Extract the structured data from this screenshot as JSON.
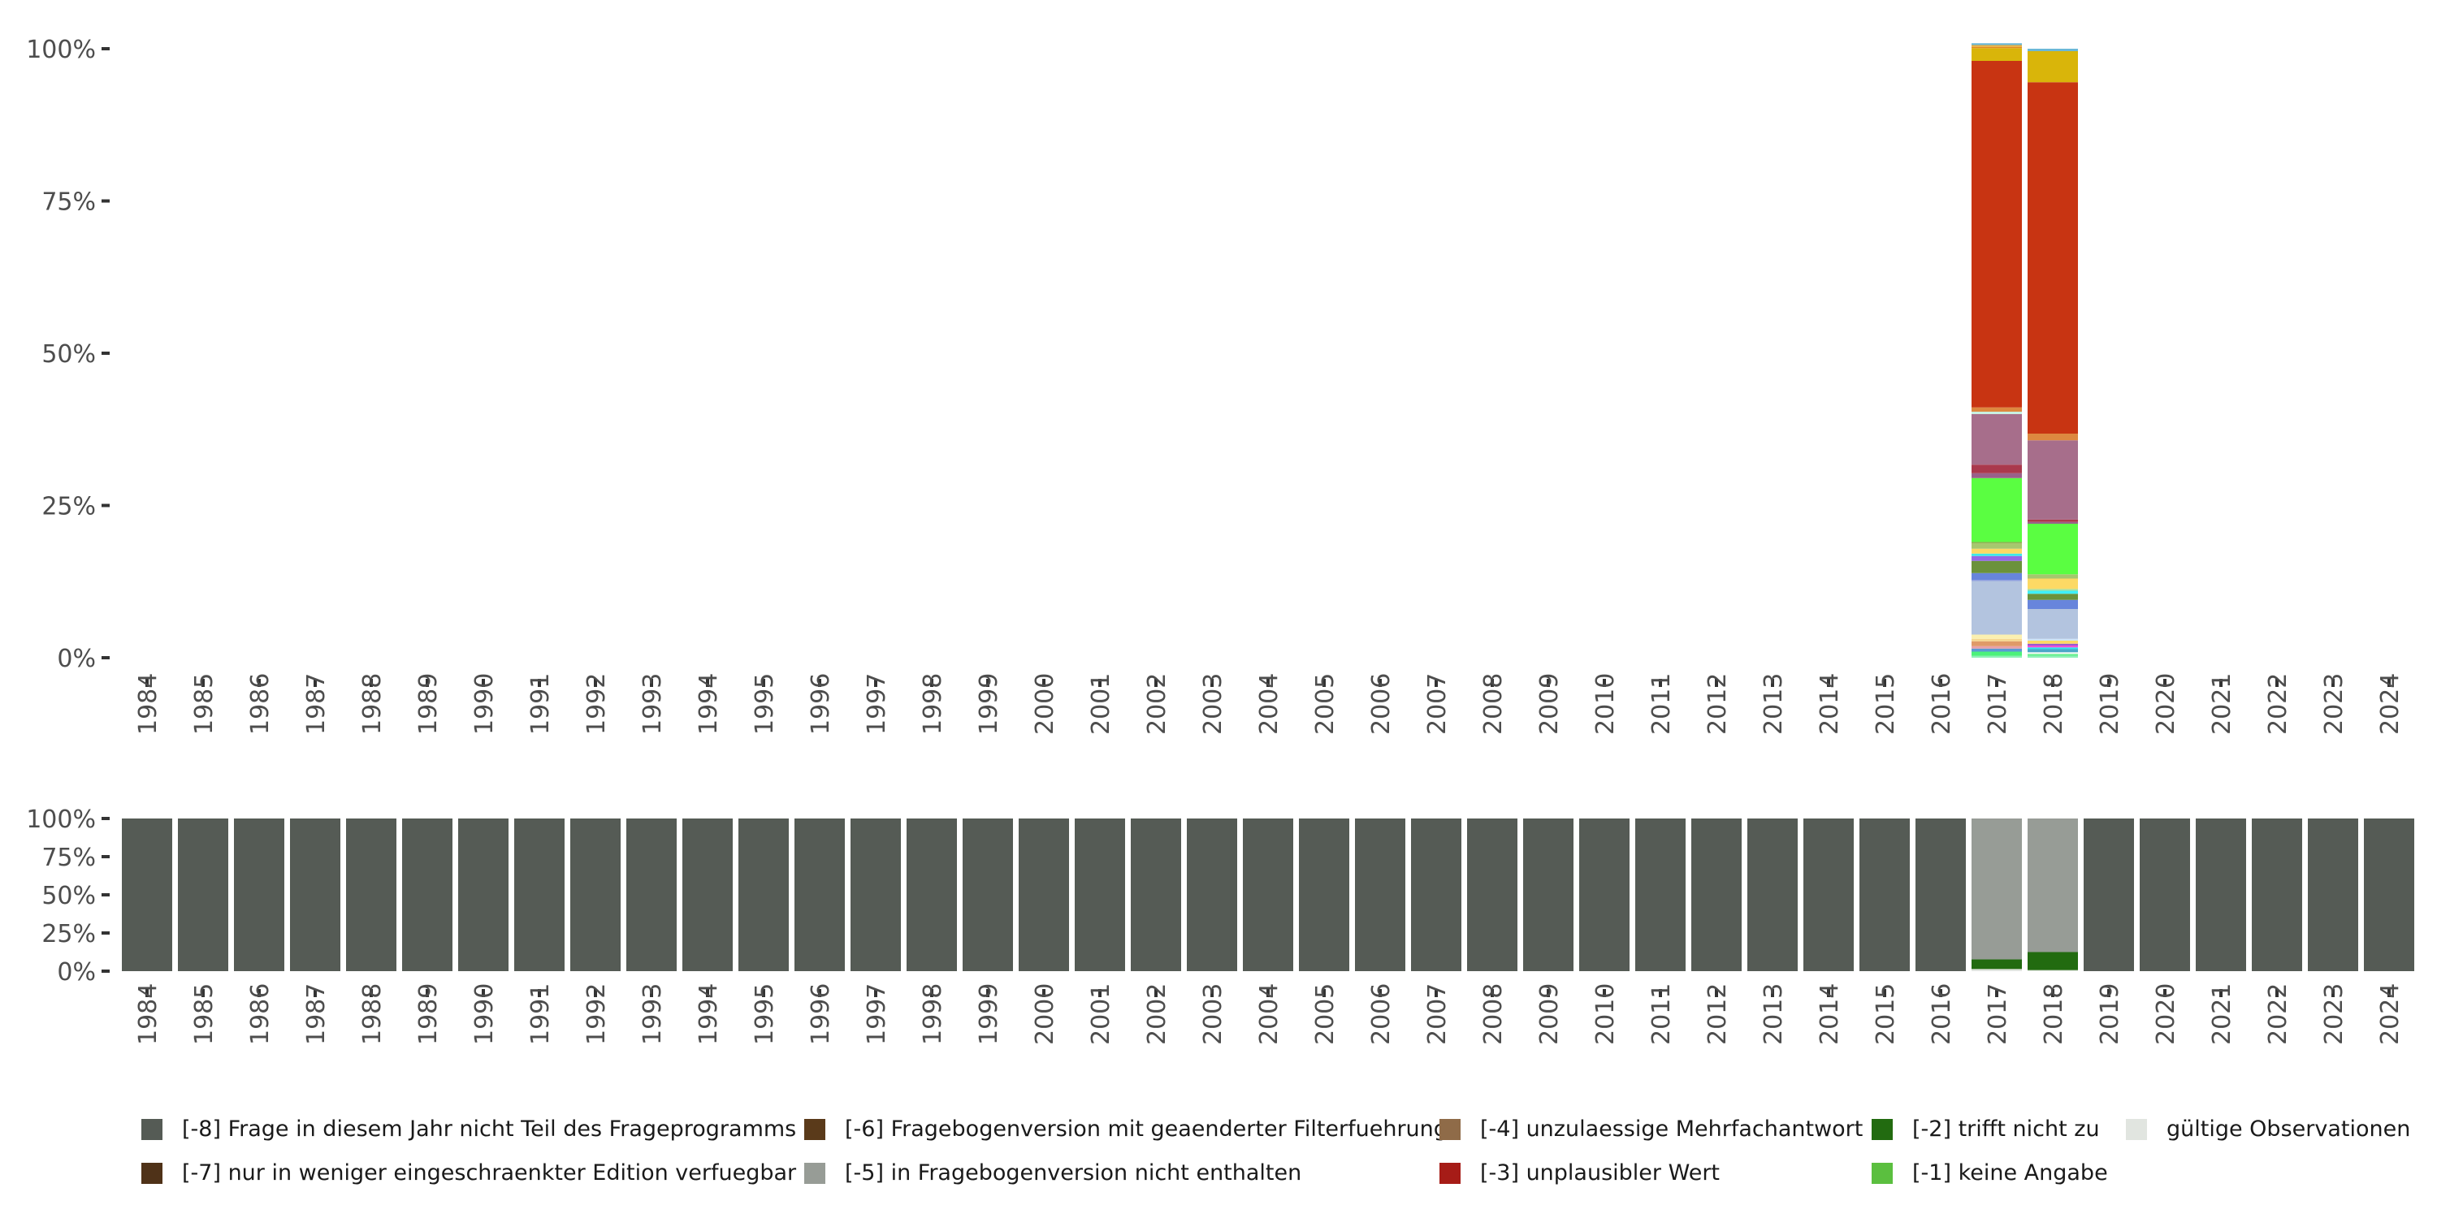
{
  "chart_data": [
    {
      "type": "bar",
      "stacked": true,
      "title": "",
      "ylabel": "",
      "xlabel": "",
      "ylim": [
        0,
        100
      ],
      "y_ticks": [
        "0%",
        "25%",
        "50%",
        "75%",
        "100%"
      ],
      "categories": [
        "1984",
        "1985",
        "1986",
        "1987",
        "1988",
        "1989",
        "1990",
        "1991",
        "1992",
        "1993",
        "1994",
        "1995",
        "1996",
        "1997",
        "1998",
        "1999",
        "2000",
        "2001",
        "2002",
        "2003",
        "2004",
        "2005",
        "2006",
        "2007",
        "2008",
        "2009",
        "2010",
        "2011",
        "2012",
        "2013",
        "2014",
        "2015",
        "2016",
        "2017",
        "2018",
        "2019",
        "2020",
        "2021",
        "2022",
        "2023",
        "2024"
      ],
      "stacks": {
        "2017": [
          {
            "value": 0.3,
            "color": "#8ef0b8"
          },
          {
            "value": 0.7,
            "color": "#4cf27a"
          },
          {
            "value": 0.5,
            "color": "#5a9bd4"
          },
          {
            "value": 0.4,
            "color": "#e8a0a8"
          },
          {
            "value": 0.8,
            "color": "#e09a68"
          },
          {
            "value": 0.4,
            "color": "#f6d890"
          },
          {
            "value": 0.7,
            "color": "#fbf0b0"
          },
          {
            "value": 8.8,
            "color": "#b3c4df"
          },
          {
            "value": 0.2,
            "color": "#8fa0e0"
          },
          {
            "value": 1.1,
            "color": "#6785dc"
          },
          {
            "value": 2.0,
            "color": "#6b923b"
          },
          {
            "value": 0.8,
            "color": "#9467e6"
          },
          {
            "value": 0.4,
            "color": "#3ee8e8"
          },
          {
            "value": 0.8,
            "color": "#fcd964"
          },
          {
            "value": 0.9,
            "color": "#a6c76e"
          },
          {
            "value": 0.2,
            "color": "#94b058"
          },
          {
            "value": 10.5,
            "color": "#5afe41"
          },
          {
            "value": 0.8,
            "color": "#99608a"
          },
          {
            "value": 1.4,
            "color": "#aa394d"
          },
          {
            "value": 8.3,
            "color": "#a76e8b"
          },
          {
            "value": 0.4,
            "color": "#c8f0e0"
          },
          {
            "value": 0.7,
            "color": "#dd8840"
          },
          {
            "value": 56.9,
            "color": "#c83412"
          },
          {
            "value": 2.1,
            "color": "#d9b50a"
          },
          {
            "value": 0.2,
            "color": "#e08a20"
          },
          {
            "value": 0.3,
            "color": "#e8b040"
          },
          {
            "value": 0.3,
            "color": "#6ab8d8"
          }
        ],
        "2018": [
          {
            "value": 0.3,
            "color": "#8ef0b8"
          },
          {
            "value": 0.3,
            "color": "#5ef08a"
          },
          {
            "value": 0.3,
            "color": "#f0f8f0"
          },
          {
            "value": 0.5,
            "color": "#4aa8c8"
          },
          {
            "value": 0.3,
            "color": "#30e0f0"
          },
          {
            "value": 0.3,
            "color": "#f050d8"
          },
          {
            "value": 0.3,
            "color": "#9a58d0"
          },
          {
            "value": 0.5,
            "color": "#fcd964"
          },
          {
            "value": 0.3,
            "color": "#cfe4f4"
          },
          {
            "value": 4.9,
            "color": "#b3c4df"
          },
          {
            "value": 1.5,
            "color": "#6785dc"
          },
          {
            "value": 1.0,
            "color": "#6b923b"
          },
          {
            "value": 0.5,
            "color": "#3ef0f8"
          },
          {
            "value": 0.3,
            "color": "#a8e0a0"
          },
          {
            "value": 1.7,
            "color": "#fcd964"
          },
          {
            "value": 0.7,
            "color": "#a6c76e"
          },
          {
            "value": 8.3,
            "color": "#5afe41"
          },
          {
            "value": 0.3,
            "color": "#99608a"
          },
          {
            "value": 0.4,
            "color": "#aa394d"
          },
          {
            "value": 13.0,
            "color": "#a76e8b"
          },
          {
            "value": 1.1,
            "color": "#dd8840"
          },
          {
            "value": 57.7,
            "color": "#c83412"
          },
          {
            "value": 5.1,
            "color": "#d9b50a"
          },
          {
            "value": 0.4,
            "color": "#6ab8d8"
          }
        ]
      }
    },
    {
      "type": "bar",
      "stacked": true,
      "title": "",
      "ylim": [
        0,
        100
      ],
      "y_ticks": [
        "0%",
        "25%",
        "50%",
        "75%",
        "100%"
      ],
      "categories": [
        "1984",
        "1985",
        "1986",
        "1987",
        "1988",
        "1989",
        "1990",
        "1991",
        "1992",
        "1993",
        "1994",
        "1995",
        "1996",
        "1997",
        "1998",
        "1999",
        "2000",
        "2001",
        "2002",
        "2003",
        "2004",
        "2005",
        "2006",
        "2007",
        "2008",
        "2009",
        "2010",
        "2011",
        "2012",
        "2013",
        "2014",
        "2015",
        "2016",
        "2017",
        "2018",
        "2019",
        "2020",
        "2021",
        "2022",
        "2023",
        "2024"
      ],
      "default_stack": [
        {
          "series": "[-8]",
          "value": 100
        }
      ],
      "stacks": {
        "2017": [
          {
            "series": "gueltig",
            "value": 1.4
          },
          {
            "series": "[-2]",
            "value": 6.3
          },
          {
            "series": "[-5]",
            "value": 92.3
          }
        ],
        "2018": [
          {
            "series": "gueltig",
            "value": 0.7
          },
          {
            "series": "[-2]",
            "value": 11.8
          },
          {
            "series": "[-5]",
            "value": 87.5
          }
        ]
      }
    }
  ],
  "legend": [
    {
      "key": "[-8]",
      "label": "[-8] Frage in diesem Jahr nicht Teil des Frageprogramms",
      "color": "#555b55"
    },
    {
      "key": "[-7]",
      "label": "[-7] nur in weniger eingeschraenkter Edition verfuegbar",
      "color": "#4f3218"
    },
    {
      "key": "[-6]",
      "label": "[-6] Fragebogenversion mit geaenderter Filterfuehrung",
      "color": "#5a3a1a"
    },
    {
      "key": "[-5]",
      "label": "[-5] in Fragebogenversion nicht enthalten",
      "color": "#979c96"
    },
    {
      "key": "[-4]",
      "label": "[-4] unzulaessige Mehrfachantwort",
      "color": "#8f6b48"
    },
    {
      "key": "[-3]",
      "label": "[-3] unplausibler Wert",
      "color": "#a61c17"
    },
    {
      "key": "[-2]",
      "label": "[-2] trifft nicht zu",
      "color": "#226b10"
    },
    {
      "key": "[-1]",
      "label": "[-1] keine Angabe",
      "color": "#5bbf3f"
    },
    {
      "key": "gueltig",
      "label": "gültige Observationen",
      "color": "#e1e5e0"
    }
  ]
}
